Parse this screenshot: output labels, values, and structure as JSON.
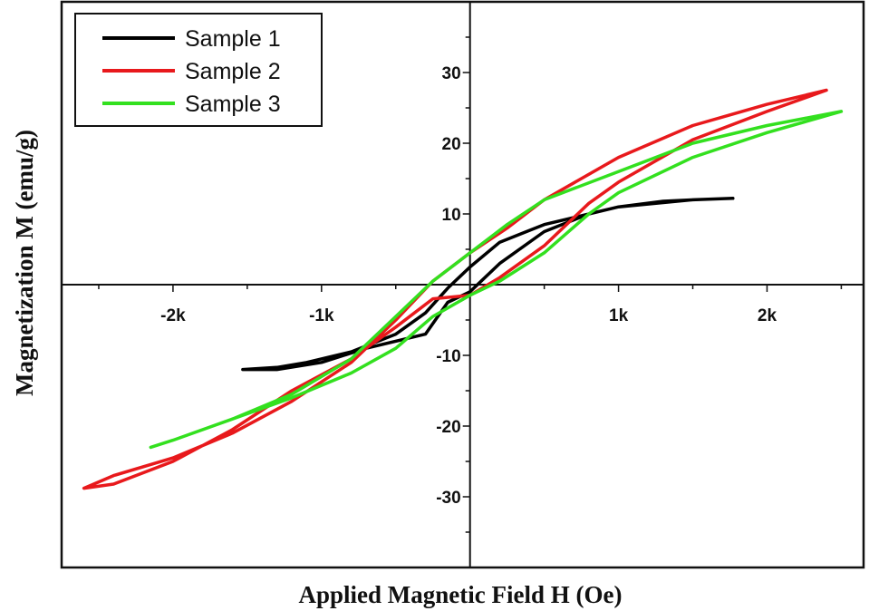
{
  "chart_data": {
    "type": "line",
    "xlabel": "Applied Magnetic Field H (Oe)",
    "ylabel": "Magnetization M (emu/g)",
    "xlim": [
      -2750,
      2650
    ],
    "ylim": [
      -40,
      40
    ],
    "x_ticks": [
      {
        "value": -2000,
        "label": "-2k"
      },
      {
        "value": -1000,
        "label": "-1k"
      },
      {
        "value": 1000,
        "label": "1k"
      },
      {
        "value": 2000,
        "label": "2k"
      }
    ],
    "y_ticks": [
      {
        "value": 30,
        "label": "30"
      },
      {
        "value": 20,
        "label": "20"
      },
      {
        "value": 10,
        "label": "10"
      },
      {
        "value": -10,
        "label": "-10"
      },
      {
        "value": -20,
        "label": "-20"
      },
      {
        "value": -30,
        "label": "-30"
      }
    ],
    "grid": false,
    "legend_position": "top-left",
    "series": [
      {
        "name": "Sample 1",
        "color": "#000000",
        "x": [
          1770,
          1500,
          1000,
          500,
          200,
          0,
          -150,
          -300,
          -500,
          -800,
          -1100,
          -1300,
          -1530,
          -1300,
          -1000,
          -700,
          -300,
          -150,
          0,
          200,
          500,
          800,
          1000,
          1300,
          1500,
          1770
        ],
        "y": [
          12.2,
          12.0,
          11.0,
          8.5,
          6.0,
          2.5,
          -0.5,
          -4.0,
          -7.0,
          -9.5,
          -11.0,
          -11.7,
          -12.0,
          -12.0,
          -11.0,
          -9.0,
          -7.0,
          -2.5,
          -1.0,
          3.0,
          7.5,
          10.0,
          11.0,
          11.8,
          12.0,
          12.2
        ]
      },
      {
        "name": "Sample 2",
        "color": "#e8191c",
        "x": [
          2400,
          2000,
          1500,
          1000,
          500,
          250,
          0,
          -250,
          -500,
          -800,
          -1200,
          -1600,
          -2000,
          -2400,
          -2600,
          -2400,
          -2000,
          -1600,
          -1200,
          -800,
          -500,
          -250,
          0,
          200,
          500,
          800,
          1000,
          1500,
          2000,
          2400
        ],
        "y": [
          27.5,
          25.5,
          22.5,
          18.0,
          12.0,
          8.0,
          4.5,
          0.5,
          -5.0,
          -11.0,
          -16.5,
          -21.0,
          -24.5,
          -27.0,
          -28.8,
          -28.2,
          -25.0,
          -20.5,
          -15.0,
          -10.5,
          -6.0,
          -2.0,
          -1.5,
          1.0,
          5.5,
          11.5,
          14.5,
          20.5,
          24.5,
          27.5
        ]
      },
      {
        "name": "Sample 3",
        "color": "#33e01f",
        "x": [
          2500,
          2000,
          1500,
          1000,
          500,
          250,
          0,
          -250,
          -500,
          -800,
          -1200,
          -1600,
          -2000,
          -2150,
          -2000,
          -1600,
          -1200,
          -800,
          -500,
          -250,
          0,
          200,
          500,
          800,
          1000,
          1500,
          2000,
          2500
        ],
        "y": [
          24.5,
          22.5,
          20.0,
          16.0,
          12.0,
          8.5,
          4.5,
          0.5,
          -4.5,
          -10.5,
          -15.5,
          -19.0,
          -22.0,
          -23.0,
          -22.0,
          -19.0,
          -16.0,
          -12.5,
          -9.0,
          -4.5,
          -1.5,
          0.5,
          4.5,
          10.0,
          13.0,
          18.0,
          21.5,
          24.5
        ]
      }
    ]
  }
}
